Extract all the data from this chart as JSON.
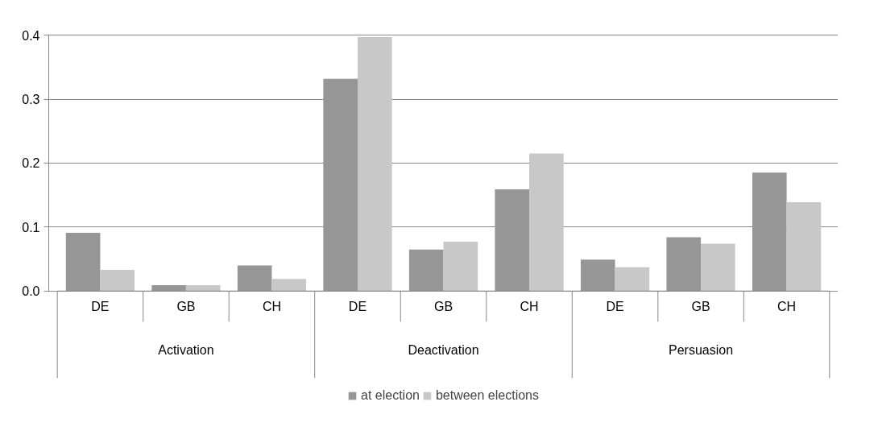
{
  "chart_data": {
    "type": "bar",
    "categories": [
      "DE",
      "GB",
      "CH",
      "DE",
      "GB",
      "CH",
      "DE",
      "GB",
      "CH"
    ],
    "annotations": [
      "Activation",
      "Deactivation",
      "Persuasion"
    ],
    "series": [
      {
        "name": "at election",
        "color": "#969696",
        "values": [
          0.091,
          0.009,
          0.04,
          0.332,
          0.065,
          0.159,
          0.049,
          0.084,
          0.185
        ]
      },
      {
        "name": "between elections",
        "color": "#c8c8c8",
        "values": [
          0.033,
          0.009,
          0.019,
          0.397,
          0.077,
          0.215,
          0.037,
          0.074,
          0.139
        ]
      }
    ],
    "ylim": [
      0,
      0.4
    ],
    "yticks": [
      {
        "value": 0,
        "label": "0.0"
      },
      0.1,
      0.2,
      0.3,
      0.4
    ],
    "grid": "y",
    "legend": "bottom"
  }
}
